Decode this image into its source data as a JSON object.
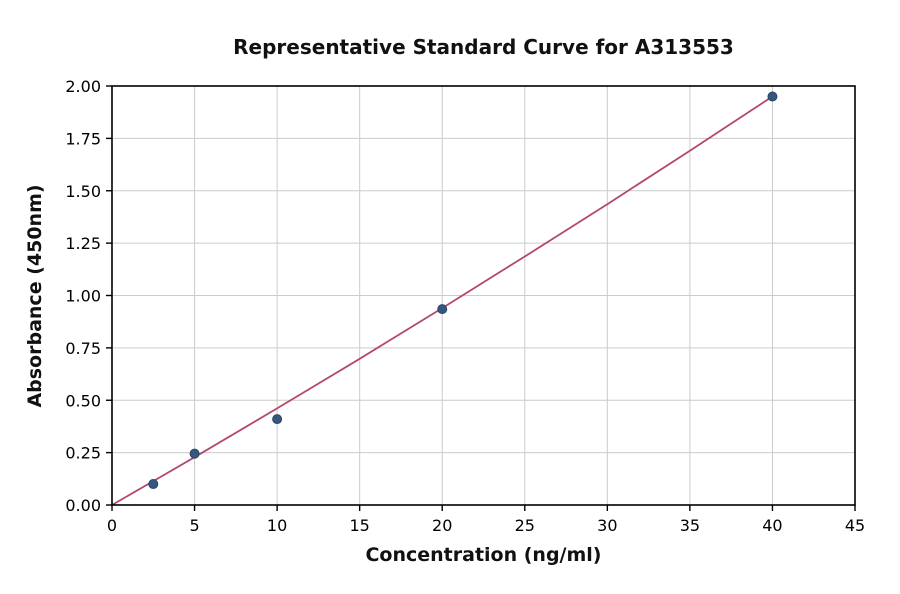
{
  "chart_data": {
    "type": "scatter",
    "title": "Representative Standard Curve for A313553",
    "xlabel": "Concentration (ng/ml)",
    "ylabel": "Absorbance (450nm)",
    "xlim": [
      0,
      45
    ],
    "ylim": [
      0,
      2.0
    ],
    "x_ticks": [
      0,
      5,
      10,
      15,
      20,
      25,
      30,
      35,
      40,
      45
    ],
    "x_tick_labels": [
      "0",
      "5",
      "10",
      "15",
      "20",
      "25",
      "30",
      "35",
      "40",
      "45"
    ],
    "y_ticks": [
      0,
      0.25,
      0.5,
      0.75,
      1.0,
      1.25,
      1.5,
      1.75,
      2.0
    ],
    "y_tick_labels": [
      "0.00",
      "0.25",
      "0.50",
      "0.75",
      "1.00",
      "1.25",
      "1.50",
      "1.75",
      "2.00"
    ],
    "grid": true,
    "legend": "none",
    "points": [
      {
        "x": 2.5,
        "y": 0.1
      },
      {
        "x": 5,
        "y": 0.245
      },
      {
        "x": 10,
        "y": 0.41
      },
      {
        "x": 20,
        "y": 0.935
      },
      {
        "x": 40,
        "y": 1.95
      }
    ],
    "trend_line_points": [
      [
        0,
        0.0
      ],
      [
        2.5,
        0.114
      ],
      [
        5,
        0.228
      ],
      [
        10,
        0.461
      ],
      [
        15,
        0.698
      ],
      [
        20,
        0.94
      ],
      [
        25,
        1.186
      ],
      [
        30,
        1.436
      ],
      [
        35,
        1.691
      ],
      [
        40,
        1.95
      ]
    ],
    "colors": {
      "point": "#35567d",
      "point_edge": "#2b4668",
      "line": "#b5486b",
      "grid": "#cccccc",
      "axis": "#000000",
      "background": "#ffffff"
    }
  }
}
